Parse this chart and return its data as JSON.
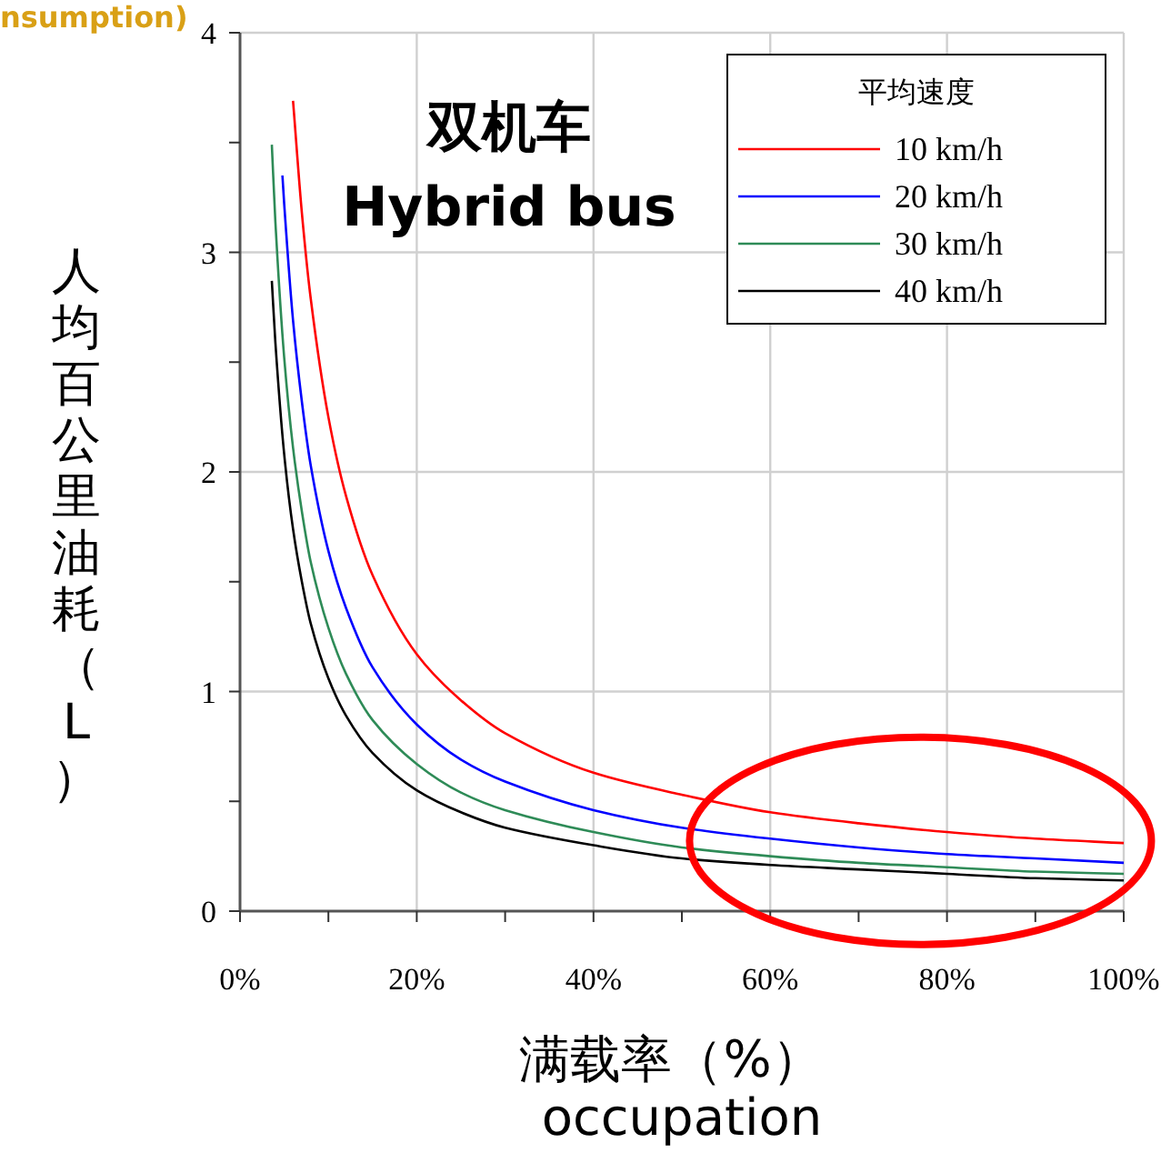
{
  "chart_data": {
    "type": "line",
    "title": "双机车",
    "subtitle": "Hybrid bus",
    "xlabel": "满载率（%）\noccupation",
    "ylabel": "人均百公里油耗（L）",
    "legend_title": "平均速度",
    "legend": "top right",
    "grid": true,
    "marker": "none",
    "line_style": "solid",
    "xlim": [
      0,
      100
    ],
    "ylim": [
      0,
      4
    ],
    "xticks": [
      {
        "value": 0,
        "label": "0%"
      },
      {
        "value": 10,
        "label": null
      },
      {
        "value": 20,
        "label": "20%"
      },
      {
        "value": 30,
        "label": null
      },
      {
        "value": 40,
        "label": "40%"
      },
      {
        "value": 50,
        "label": null
      },
      {
        "value": 60,
        "label": "60%"
      },
      {
        "value": 70,
        "label": null
      },
      {
        "value": 80,
        "label": "80%"
      },
      {
        "value": 90,
        "label": null
      },
      {
        "value": 100,
        "label": "100%"
      }
    ],
    "yticks": [
      0,
      {
        "value": 0.5,
        "label": null
      },
      1,
      {
        "value": 1.5,
        "label": null
      },
      2,
      {
        "value": 2.5,
        "label": null
      },
      3,
      {
        "value": 3.5,
        "label": null
      },
      4
    ],
    "annotations": [
      "nsumption)"
    ],
    "series": [
      {
        "name": "10 km/h",
        "color": "#ff0000",
        "x": [
          6,
          7,
          8,
          10,
          12,
          15,
          20,
          25,
          30,
          40,
          50,
          60,
          70,
          80,
          90,
          100
        ],
        "values": [
          3.69,
          3.18,
          2.79,
          2.25,
          1.89,
          1.53,
          1.17,
          0.96,
          0.81,
          0.63,
          0.53,
          0.45,
          0.4,
          0.36,
          0.33,
          0.31
        ]
      },
      {
        "name": "20 km/h",
        "color": "#0000ff",
        "x": [
          4.8,
          5,
          6,
          7,
          8,
          10,
          12,
          15,
          20,
          25,
          30,
          40,
          50,
          60,
          70,
          80,
          90,
          100
        ],
        "values": [
          3.35,
          3.22,
          2.69,
          2.32,
          2.03,
          1.64,
          1.38,
          1.11,
          0.85,
          0.69,
          0.59,
          0.46,
          0.38,
          0.33,
          0.29,
          0.26,
          0.24,
          0.22
        ]
      },
      {
        "name": "30 km/h",
        "color": "#2e8b57",
        "x": [
          3.6,
          4,
          5,
          6,
          7,
          8,
          10,
          12,
          15,
          20,
          25,
          30,
          40,
          50,
          60,
          70,
          80,
          90,
          100
        ],
        "values": [
          3.49,
          3.14,
          2.52,
          2.11,
          1.82,
          1.59,
          1.29,
          1.08,
          0.87,
          0.67,
          0.54,
          0.46,
          0.36,
          0.29,
          0.25,
          0.22,
          0.2,
          0.18,
          0.17
        ]
      },
      {
        "name": "40 km/h",
        "color": "#000000",
        "x": [
          3.6,
          4,
          5,
          6,
          7,
          8,
          10,
          12,
          15,
          20,
          25,
          30,
          40,
          50,
          60,
          70,
          80,
          90,
          100
        ],
        "values": [
          2.87,
          2.59,
          2.08,
          1.74,
          1.5,
          1.31,
          1.06,
          0.89,
          0.72,
          0.55,
          0.45,
          0.38,
          0.3,
          0.24,
          0.21,
          0.19,
          0.17,
          0.15,
          0.14
        ]
      }
    ]
  }
}
